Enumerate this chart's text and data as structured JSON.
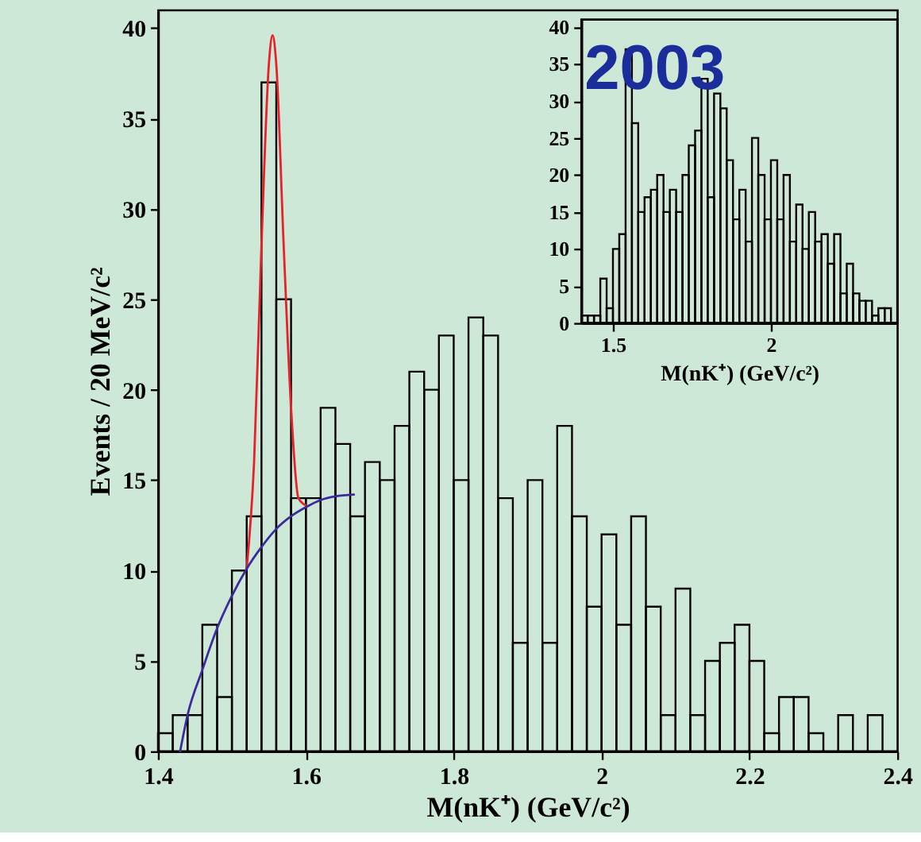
{
  "chart_data": [
    {
      "type": "histogram",
      "xlabel": "M(nK⁺)  (GeV/c²)",
      "ylabel": "Events / 20 MeV/c²",
      "bins": [
        1.4,
        1.42,
        1.44,
        1.46,
        1.48,
        1.5,
        1.52,
        1.54,
        1.56,
        1.58,
        1.6,
        1.62,
        1.64,
        1.66,
        1.68,
        1.7,
        1.72,
        1.74,
        1.76,
        1.78,
        1.8,
        1.82,
        1.84,
        1.86,
        1.88,
        1.9,
        1.92,
        1.94,
        1.96,
        1.98,
        2.0,
        2.02,
        2.04,
        2.06,
        2.08,
        2.1,
        2.12,
        2.14,
        2.16,
        2.18,
        2.2,
        2.22,
        2.24,
        2.26,
        2.28,
        2.3,
        2.32,
        2.34,
        2.36,
        2.38,
        2.4
      ],
      "series": [
        {
          "color": "#000000",
          "values": [
            1,
            2,
            2,
            7,
            3,
            10,
            13,
            37,
            25,
            14,
            14,
            19,
            17,
            13,
            16,
            15,
            18,
            21,
            20,
            23,
            15,
            24,
            23,
            14,
            6,
            15,
            6,
            18,
            13,
            8,
            12,
            7,
            13,
            8,
            2,
            9,
            2,
            5,
            6,
            7,
            5,
            1,
            3,
            3,
            1,
            0,
            2,
            0,
            2,
            0
          ]
        },
        {
          "type": "line",
          "color": "#e8202a",
          "line_style": "solid",
          "x": [
            1.52,
            1.53,
            1.54,
            1.55,
            1.555,
            1.56,
            1.57,
            1.58,
            1.59,
            1.6
          ],
          "values": [
            10.1,
            16,
            28,
            38,
            39.6,
            38,
            28,
            19,
            14,
            13.6
          ]
        },
        {
          "type": "line",
          "color": "#3a2a9a",
          "line_style": "solid",
          "x": [
            1.43,
            1.44,
            1.46,
            1.48,
            1.5,
            1.52,
            1.54,
            1.56,
            1.58,
            1.6,
            1.62,
            1.64,
            1.665
          ],
          "values": [
            0,
            2,
            4.5,
            6.8,
            8.6,
            10.1,
            11.3,
            12.3,
            13.0,
            13.5,
            13.9,
            14.1,
            14.2
          ]
        }
      ],
      "xlim": [
        1.4,
        2.4
      ],
      "xticks": [
        1.4,
        1.6,
        1.8,
        2,
        2.2,
        2.4
      ],
      "ylim": [
        0,
        41
      ],
      "yticks": [
        0,
        5,
        10,
        15,
        20,
        25,
        30,
        35,
        40
      ],
      "grid": false
    },
    {
      "type": "histogram",
      "xlabel": "M(nK⁺) (GeV/c²)",
      "annotations": [
        "2003"
      ],
      "bins": [
        1.4,
        1.42,
        1.44,
        1.46,
        1.48,
        1.5,
        1.52,
        1.54,
        1.56,
        1.58,
        1.6,
        1.62,
        1.64,
        1.66,
        1.68,
        1.7,
        1.72,
        1.74,
        1.76,
        1.78,
        1.8,
        1.82,
        1.84,
        1.86,
        1.88,
        1.9,
        1.92,
        1.94,
        1.96,
        1.98,
        2.0,
        2.02,
        2.04,
        2.06,
        2.08,
        2.1,
        2.12,
        2.14,
        2.16,
        2.18,
        2.2,
        2.22,
        2.24,
        2.26,
        2.28,
        2.3,
        2.32,
        2.34,
        2.36,
        2.38,
        2.4
      ],
      "series": [
        {
          "color": "#000000",
          "values": [
            1,
            1,
            1,
            6,
            2,
            10,
            12,
            37,
            27,
            15,
            17,
            18,
            20,
            15,
            18,
            15,
            20,
            24,
            26,
            33,
            17,
            31,
            29,
            22,
            14,
            18,
            11,
            25,
            20,
            14,
            22,
            14,
            20,
            11,
            16,
            10,
            15,
            11,
            12,
            8,
            12,
            4,
            8,
            4,
            3,
            3,
            1,
            2,
            2,
            0
          ]
        }
      ],
      "xlim": [
        1.4,
        2.4
      ],
      "xticks": [
        1.5,
        2
      ],
      "ylim": [
        0,
        41
      ],
      "yticks": [
        0,
        5,
        10,
        15,
        20,
        25,
        30,
        35,
        40
      ],
      "grid": false
    }
  ]
}
